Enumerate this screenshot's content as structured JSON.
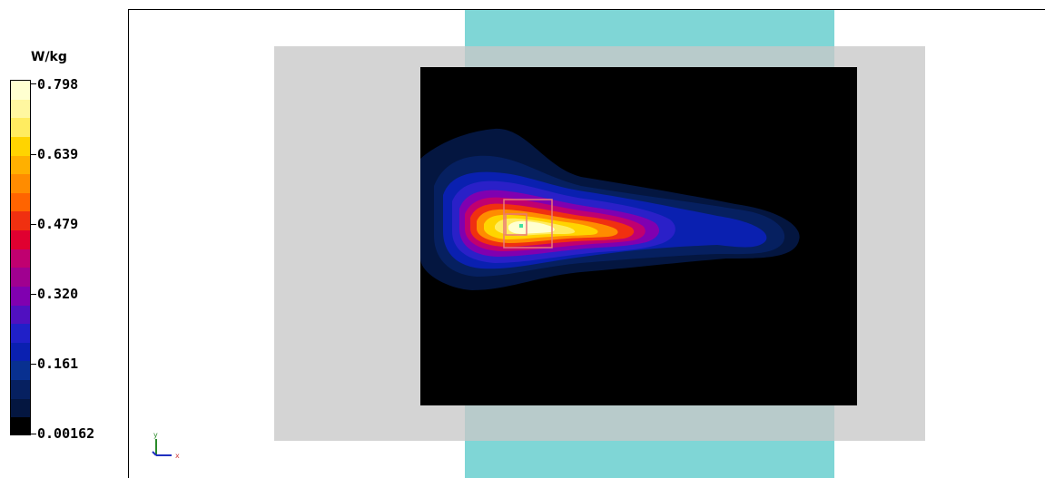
{
  "legend": {
    "unit": "W/kg",
    "ticks": [
      "0.798",
      "0.639",
      "0.479",
      "0.320",
      "0.161",
      "0.00162"
    ],
    "colors": [
      "#ffffd0",
      "#fff7a0",
      "#ffec60",
      "#ffd400",
      "#ffb000",
      "#ff8c00",
      "#ff6400",
      "#f03010",
      "#e00030",
      "#c00070",
      "#a00090",
      "#8000b0",
      "#5010c0",
      "#2020c8",
      "#0a20b0",
      "#083090",
      "#062060",
      "#041640",
      "#000000"
    ]
  },
  "axes": {
    "y_label": "y",
    "x_label": "x"
  },
  "colors": {
    "phantom": "#d3d3d3",
    "strip": "#7fd6d6",
    "scan_area": "#000000",
    "peak_box": "#e87878"
  }
}
